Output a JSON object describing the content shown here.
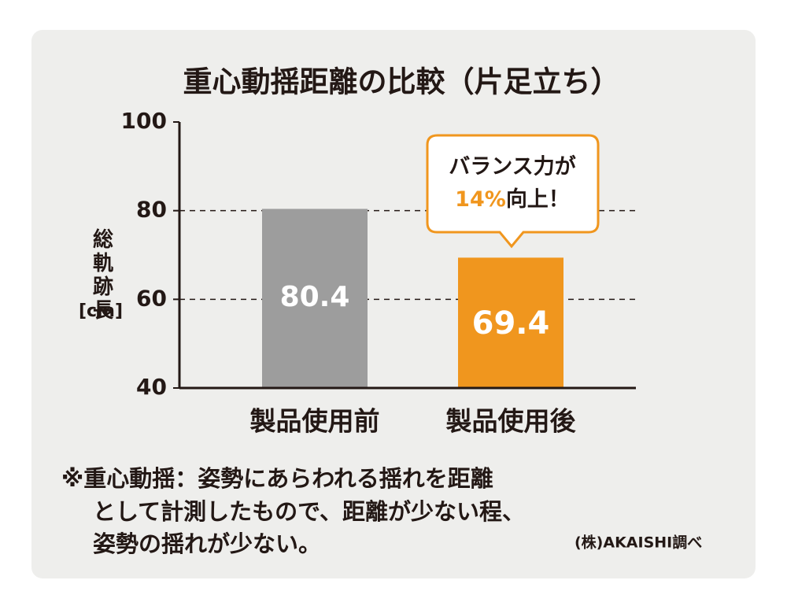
{
  "chart_data": {
    "type": "bar",
    "title": "重心動揺距離の比較（片足立ち）",
    "y_label": "総軌跡長",
    "y_unit": "[cm]",
    "categories": [
      "製品使用前",
      "製品使用後"
    ],
    "values": [
      80.4,
      69.4
    ],
    "colors": [
      "#9d9d9d",
      "#f0961e"
    ],
    "ylim": [
      40,
      100
    ],
    "yticks": [
      100,
      80,
      60,
      40
    ],
    "grid": true,
    "callout": {
      "line1": "バランス力が",
      "highlight": "14%",
      "line2": "向上！",
      "color": "#f0961e"
    },
    "footnote": [
      "※重心動揺：姿勢にあらわれる揺れを距離",
      "として計測したもので、距離が少ない程、",
      "姿勢の揺れが少ない。"
    ],
    "credit": "(株)AKAISHI調べ"
  }
}
